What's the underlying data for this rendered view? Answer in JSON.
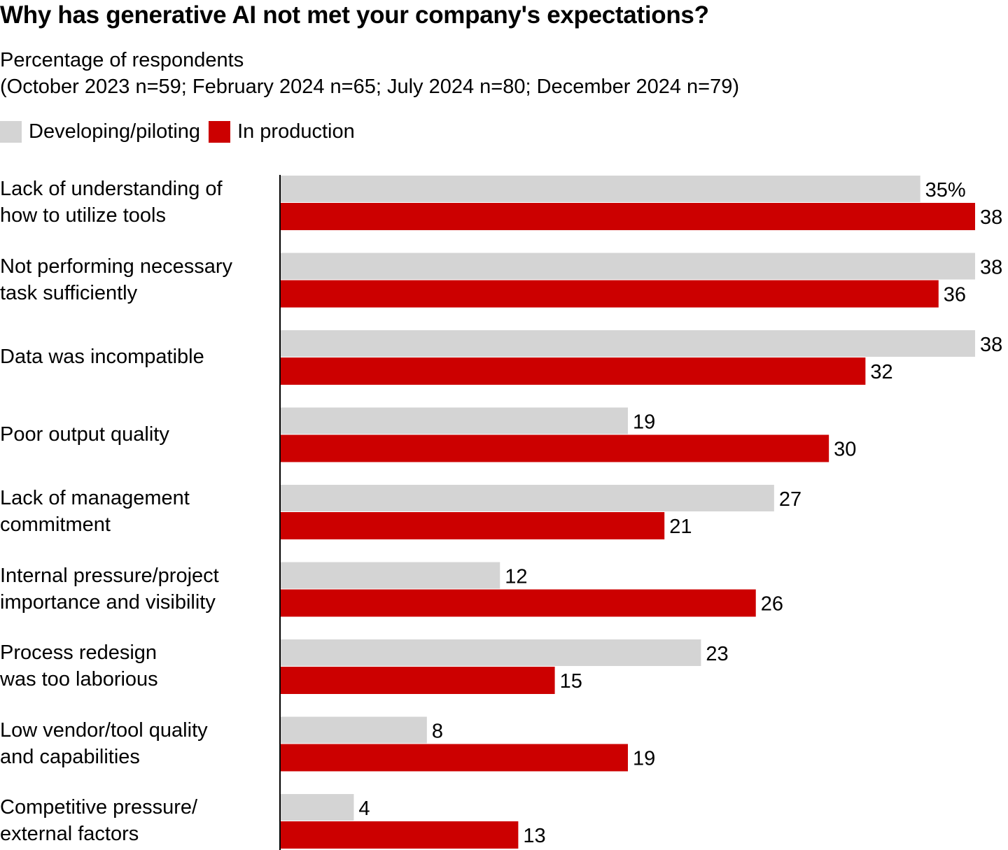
{
  "chart_data": {
    "type": "bar",
    "orientation": "horizontal",
    "title": "Why has generative AI not met your company's expectations?",
    "subtitle": "Percentage of respondents",
    "note": "(October 2023 n=59; February 2024 n=65; July 2024 n=80; December 2024 n=79)",
    "legend_position": "top-left",
    "xlim": [
      0,
      40
    ],
    "grid": false,
    "unit_suffix_first_label": "%",
    "categories": [
      "Lack of understanding of|how to utilize tools",
      "Not performing necessary|task sufficiently",
      "Data was incompatible",
      "Poor output quality",
      "Lack of management|commitment",
      "Internal pressure/project|importance and visibility",
      "Process redesign|was too laborious",
      "Low vendor/tool quality|and capabilities",
      "Competitive pressure/|external factors"
    ],
    "series": [
      {
        "name": "Developing/piloting",
        "color": "#d4d4d4",
        "values": [
          35,
          38,
          38,
          19,
          27,
          12,
          23,
          8,
          4
        ]
      },
      {
        "name": "In production",
        "color": "#cc0000",
        "values": [
          38,
          36,
          32,
          30,
          21,
          26,
          15,
          19,
          13
        ]
      }
    ]
  }
}
